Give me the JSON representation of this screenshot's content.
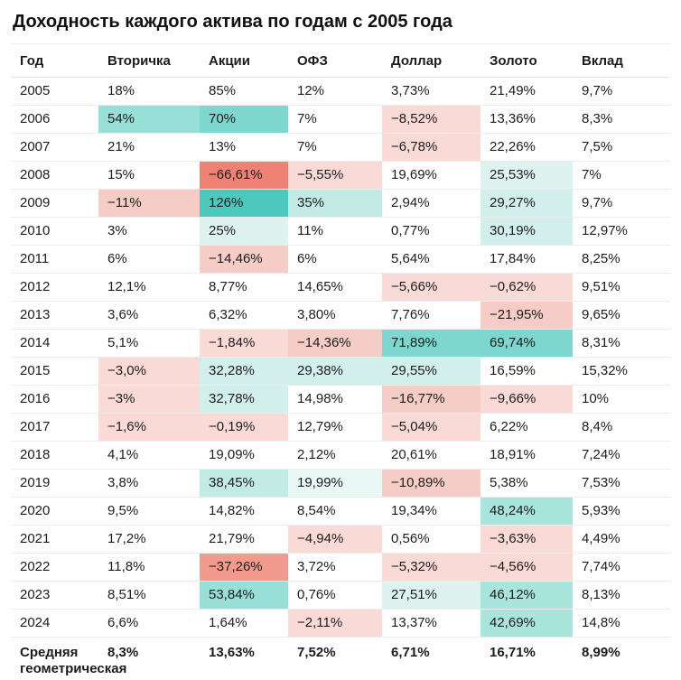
{
  "title": "Доходность каждого актива по годам с 2005 года",
  "colors": {
    "background": "#ffffff",
    "text": "#1c1c1c",
    "row_border": "#ececec",
    "palette": {
      "pink_light": "#f9dad6",
      "pink_medium": "#f6ccc6",
      "salmon": "#f29a8e",
      "red_strong": "#ef8175",
      "teal_faint": "#eaf8f6",
      "teal_xlight": "#def3f0",
      "teal_light": "#d2efeb",
      "teal_mid_light": "#c3ebe6",
      "teal_mid": "#a9e4dd",
      "teal_mid_strong": "#97dfd7",
      "teal_strong": "#7ed7ce",
      "teal_max": "#4cc8bd"
    }
  },
  "chart_data": {
    "type": "table",
    "title": "Доходность каждого актива по годам с 2005 года",
    "columns": [
      "Год",
      "Вторичка",
      "Акции",
      "ОФЗ",
      "Доллар",
      "Золото",
      "Вклад"
    ],
    "rows": [
      {
        "year": "2005",
        "values": [
          "18%",
          "85%",
          "12%",
          "3,73%",
          "21,49%",
          "9,7%"
        ],
        "colors": [
          "",
          "",
          "",
          "",
          "",
          ""
        ]
      },
      {
        "year": "2006",
        "values": [
          "54%",
          "70%",
          "7%",
          "−8,52%",
          "13,36%",
          "8,3%"
        ],
        "colors": [
          "#97dfd7",
          "#7ed7ce",
          "",
          "#f9dad6",
          "",
          ""
        ]
      },
      {
        "year": "2007",
        "values": [
          "21%",
          "13%",
          "7%",
          "−6,78%",
          "22,26%",
          "7,5%"
        ],
        "colors": [
          "",
          "",
          "",
          "#f9dad6",
          "",
          ""
        ]
      },
      {
        "year": "2008",
        "values": [
          "15%",
          "−66,61%",
          "−5,55%",
          "19,69%",
          "25,53%",
          "7%"
        ],
        "colors": [
          "",
          "#ef8175",
          "#f9dad6",
          "",
          "#def3f0",
          ""
        ]
      },
      {
        "year": "2009",
        "values": [
          "−11%",
          "126%",
          "35%",
          "2,94%",
          "29,27%",
          "9,7%"
        ],
        "colors": [
          "#f6ccc6",
          "#4cc8bd",
          "#c3ebe6",
          "",
          "#d2efeb",
          ""
        ]
      },
      {
        "year": "2010",
        "values": [
          "3%",
          "25%",
          "11%",
          "0,77%",
          "30,19%",
          "12,97%"
        ],
        "colors": [
          "",
          "#def3f0",
          "",
          "",
          "#d2efeb",
          ""
        ]
      },
      {
        "year": "2011",
        "values": [
          "6%",
          "−14,46%",
          "6%",
          "5,64%",
          "17,84%",
          "8,25%"
        ],
        "colors": [
          "",
          "#f6ccc6",
          "",
          "",
          "",
          ""
        ]
      },
      {
        "year": "2012",
        "values": [
          "12,1%",
          "8,77%",
          "14,65%",
          "−5,66%",
          "−0,62%",
          "9,51%"
        ],
        "colors": [
          "",
          "",
          "",
          "#f9dad6",
          "#f9dad6",
          ""
        ]
      },
      {
        "year": "2013",
        "values": [
          "3,6%",
          "6,32%",
          "3,80%",
          "7,76%",
          "−21,95%",
          "9,65%"
        ],
        "colors": [
          "",
          "",
          "",
          "",
          "#f6ccc6",
          ""
        ]
      },
      {
        "year": "2014",
        "values": [
          "5,1%",
          "−1,84%",
          "−14,36%",
          "71,89%",
          "69,74%",
          "8,31%"
        ],
        "colors": [
          "",
          "#f9dad6",
          "#f6ccc6",
          "#7ed7ce",
          "#7ed7ce",
          ""
        ]
      },
      {
        "year": "2015",
        "values": [
          "−3,0%",
          "32,28%",
          "29,38%",
          "29,55%",
          "16,59%",
          "15,32%"
        ],
        "colors": [
          "#f9dad6",
          "#d2efeb",
          "#d2efeb",
          "#d2efeb",
          "",
          ""
        ]
      },
      {
        "year": "2016",
        "values": [
          "−3%",
          "32,78%",
          "14,98%",
          "−16,77%",
          "−9,66%",
          "10%"
        ],
        "colors": [
          "#f9dad6",
          "#d2efeb",
          "",
          "#f6ccc6",
          "#f9dad6",
          ""
        ]
      },
      {
        "year": "2017",
        "values": [
          "−1,6%",
          "−0,19%",
          "12,79%",
          "−5,04%",
          "6,22%",
          "8,4%"
        ],
        "colors": [
          "#f9dad6",
          "#f9dad6",
          "",
          "#f9dad6",
          "",
          ""
        ]
      },
      {
        "year": "2018",
        "values": [
          "4,1%",
          "19,09%",
          "2,12%",
          "20,61%",
          "18,91%",
          "7,24%"
        ],
        "colors": [
          "",
          "",
          "",
          "",
          "",
          ""
        ]
      },
      {
        "year": "2019",
        "values": [
          "3,8%",
          "38,45%",
          "19,99%",
          "−10,89%",
          "5,38%",
          "7,53%"
        ],
        "colors": [
          "",
          "#c3ebe6",
          "#eaf8f6",
          "#f6ccc6",
          "",
          ""
        ]
      },
      {
        "year": "2020",
        "values": [
          "9,5%",
          "14,82%",
          "8,54%",
          "19,34%",
          "48,24%",
          "5,93%"
        ],
        "colors": [
          "",
          "",
          "",
          "",
          "#a9e4dd",
          ""
        ]
      },
      {
        "year": "2021",
        "values": [
          "17,2%",
          "21,79%",
          "−4,94%",
          "0,56%",
          "−3,63%",
          "4,49%"
        ],
        "colors": [
          "",
          "",
          "#f9dad6",
          "",
          "#f9dad6",
          ""
        ]
      },
      {
        "year": "2022",
        "values": [
          "11,8%",
          "−37,26%",
          "3,72%",
          "−5,32%",
          "−4,56%",
          "7,74%"
        ],
        "colors": [
          "",
          "#f29a8e",
          "",
          "#f9dad6",
          "#f9dad6",
          ""
        ]
      },
      {
        "year": "2023",
        "values": [
          "8,51%",
          "53,84%",
          "0,76%",
          "27,51%",
          "46,12%",
          "8,13%"
        ],
        "colors": [
          "",
          "#97dfd7",
          "",
          "#def3f0",
          "#a9e4dd",
          ""
        ]
      },
      {
        "year": "2024",
        "values": [
          "6,6%",
          "1,64%",
          "−2,11%",
          "13,37%",
          "42,69%",
          "14,8%"
        ],
        "colors": [
          "",
          "",
          "#f9dad6",
          "",
          "#a9e4dd",
          ""
        ]
      }
    ],
    "footer": {
      "label": "Средняя геометрическая доходность",
      "values": [
        "8,3%",
        "13,63%",
        "7,52%",
        "6,71%",
        "16,71%",
        "8,99%"
      ]
    }
  }
}
